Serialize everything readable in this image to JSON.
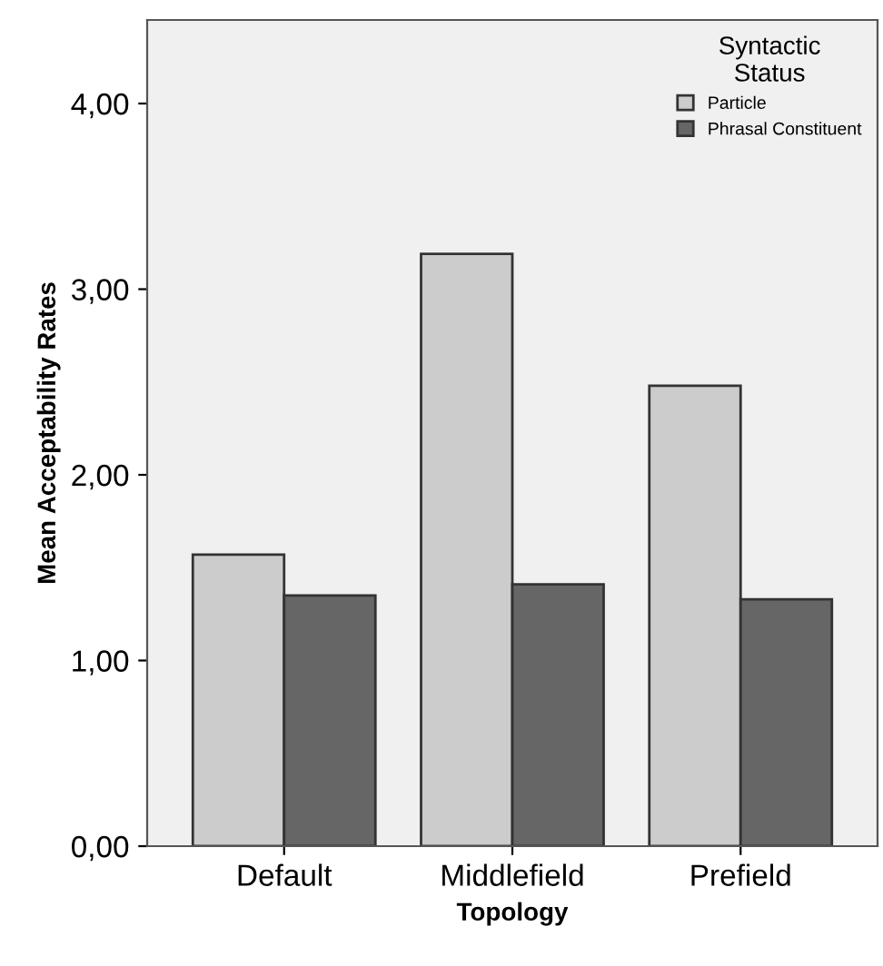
{
  "chart_data": {
    "type": "bar",
    "xlabel": "Topology",
    "ylabel": "Mean Acceptability Rates",
    "legend_title": "Syntactic\nStatus",
    "categories": [
      "Default",
      "Middlefield",
      "Prefield"
    ],
    "series": [
      {
        "name": "Particle",
        "color": "#cccccc",
        "values": [
          1.57,
          3.19,
          2.48
        ]
      },
      {
        "name": "Phrasal Constituent",
        "color": "#666666",
        "values": [
          1.35,
          1.41,
          1.33
        ]
      }
    ],
    "ylim": [
      0,
      4.45
    ],
    "yticks": [
      {
        "value": 0,
        "label": "0,00"
      },
      {
        "value": 1,
        "label": "1,00"
      },
      {
        "value": 2,
        "label": "2,00"
      },
      {
        "value": 3,
        "label": "3,00"
      },
      {
        "value": 4,
        "label": "4,00"
      }
    ],
    "grid": false,
    "legend": "top right"
  }
}
